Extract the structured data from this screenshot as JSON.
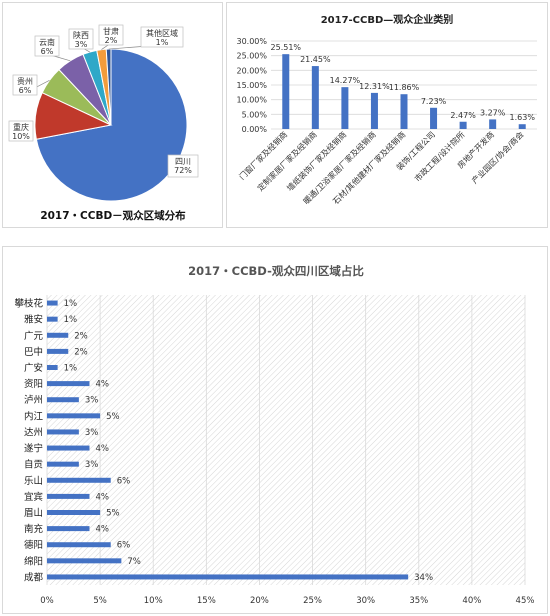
{
  "colors": {
    "series": "#4472c4",
    "pie": [
      "#4472c4",
      "#c0392b",
      "#9bbb59",
      "#7b61a8",
      "#2fa8c8",
      "#f39c3c",
      "#2e5597"
    ],
    "grid": "#d9d9d9",
    "hatch": "#cfcfcf",
    "text": "#333333"
  },
  "watermark": "",
  "chart_data": [
    {
      "type": "pie",
      "title": "2017・CCBD－观众区域分布",
      "slices": [
        {
          "label": "四川",
          "value": 72,
          "pct_label": "72%"
        },
        {
          "label": "重庆",
          "value": 10,
          "pct_label": "10%"
        },
        {
          "label": "贵州",
          "value": 6,
          "pct_label": "6%"
        },
        {
          "label": "云南",
          "value": 6,
          "pct_label": "6%"
        },
        {
          "label": "陕西",
          "value": 3,
          "pct_label": "3%"
        },
        {
          "label": "甘肃",
          "value": 2,
          "pct_label": "2%"
        },
        {
          "label": "其他区域",
          "value": 1,
          "pct_label": "1%"
        }
      ]
    },
    {
      "type": "bar",
      "title": "2017-CCBD—观众企业类别",
      "categories": [
        "门窗厂家及经销商",
        "定制家居厂家及经销商",
        "墙纸装饰厂家及经销商",
        "暖通/卫浴家居厂家及经销商",
        "石材/其他建材厂家及经销商",
        "装饰/工程公司",
        "市政工程/设计院所",
        "房地产开发商",
        "产业园区/协会/商会"
      ],
      "values": [
        25.51,
        21.45,
        14.27,
        12.31,
        11.86,
        7.23,
        2.47,
        3.27,
        1.63
      ],
      "value_labels": [
        "25.51%",
        "21.45%",
        "14.27%",
        "12.31%",
        "11.86%",
        "7.23%",
        "2.47%",
        "3.27%",
        "1.63%"
      ],
      "ylim": [
        0,
        30
      ],
      "yticks": [
        "0.00%",
        "5.00%",
        "10.00%",
        "15.00%",
        "20.00%",
        "25.00%",
        "30.00%"
      ],
      "grid": true
    },
    {
      "type": "bar",
      "orientation": "horizontal",
      "title": "2017・CCBD-观众四川区域占比",
      "categories": [
        "攀枝花",
        "雅安",
        "广元",
        "巴中",
        "广安",
        "资阳",
        "泸州",
        "内江",
        "达州",
        "遂宁",
        "自贡",
        "乐山",
        "宜宾",
        "眉山",
        "南充",
        "德阳",
        "绵阳",
        "成都"
      ],
      "values": [
        1,
        1,
        2,
        2,
        1,
        4,
        3,
        5,
        3,
        4,
        3,
        6,
        4,
        5,
        4,
        6,
        7,
        34
      ],
      "value_labels": [
        "1%",
        "1%",
        "2%",
        "2%",
        "1%",
        "4%",
        "3%",
        "5%",
        "3%",
        "4%",
        "3%",
        "6%",
        "4%",
        "5%",
        "4%",
        "6%",
        "7%",
        "34%"
      ],
      "xlim": [
        0,
        45
      ],
      "xticks": [
        "0%",
        "5%",
        "10%",
        "15%",
        "20%",
        "25%",
        "30%",
        "35%",
        "40%",
        "45%"
      ],
      "grid": true
    }
  ]
}
